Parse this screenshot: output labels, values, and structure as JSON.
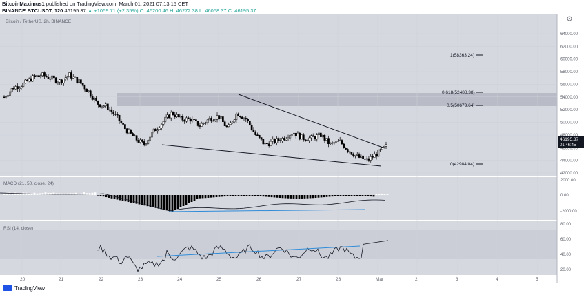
{
  "header": {
    "author": "BitcoinMaximus1",
    "published_text": "published on TradingView.com, March 01, 2021 07:13:15 CET",
    "symbol": "BINANCE:BTCUSDT, 120",
    "price": "46195.37",
    "change": "▲ +1059.71 (+2.35%)",
    "ohlc": "O: 46200.46  H: 46272.38  L: 46058.37  C: 46195.37"
  },
  "chart_title": "Bitcoin / TetherUS, 2h, BINANCE",
  "colors": {
    "background": "#d6d8e0",
    "band": "#b9bcc6",
    "candle_up": "#ffffff",
    "candle_down": "#000000",
    "trendline": "#131722",
    "divergence": "#2f8cd8"
  },
  "fib_levels": [
    {
      "label": "1(58363.24)",
      "price": 58363.24
    },
    {
      "label": "0.618(52488.38)",
      "price": 52488.38
    },
    {
      "label": "0.5(50673.64)",
      "price": 50673.64
    },
    {
      "label": "0(42984.04)",
      "price": 42984.04
    }
  ],
  "price_axis": [
    "64000.00",
    "62000.00",
    "60000.00",
    "58000.00",
    "56000.00",
    "54000.00",
    "52000.00",
    "50000.00",
    "48000.00",
    "46000.00",
    "44000.00",
    "42000.00"
  ],
  "last_price_label": "46195.37",
  "countdown_label": "01:46:45",
  "macd": {
    "label": "MACD (21, 50, close, 24)",
    "axis": [
      "2000.00",
      "0.00",
      "-2000.00"
    ]
  },
  "rsi": {
    "label": "RSI (14, close)",
    "axis": [
      "80.00",
      "60.00",
      "40.00",
      "20.00"
    ]
  },
  "time_axis": [
    "20",
    "21",
    "22",
    "23",
    "24",
    "25",
    "26",
    "27",
    "28",
    "Mar",
    "2",
    "3",
    "4",
    "5"
  ],
  "footer": {
    "brand": "TradingView"
  },
  "chart_data": {
    "type": "candlestick",
    "title": "Bitcoin / TetherUS, 2h, BINANCE",
    "y_ticks": [
      64000,
      62000,
      60000,
      58000,
      56000,
      54000,
      52000,
      50000,
      48000,
      46000,
      44000,
      42000
    ],
    "x_ticks": [
      "20",
      "21",
      "22",
      "23",
      "24",
      "25",
      "26",
      "27",
      "28",
      "Mar",
      "2",
      "3",
      "4",
      "5"
    ],
    "last_price": 46195.37,
    "fib_retracement": [
      {
        "level": "1",
        "price": 58363.24
      },
      {
        "level": "0.618",
        "price": 52488.38
      },
      {
        "level": "0.5",
        "price": 50673.64
      },
      {
        "level": "0",
        "price": 42984.04
      }
    ],
    "series_closes_approx": [
      54000,
      55500,
      56000,
      57000,
      57500,
      57000,
      56500,
      57500,
      56500,
      55000,
      53000,
      52500,
      51000,
      49000,
      47500,
      46500,
      48500,
      50000,
      51500,
      50500,
      50500,
      49500,
      50500,
      51000,
      49000,
      51500,
      50500,
      48000,
      46500,
      47000,
      47500,
      48500,
      47500,
      47500,
      48000,
      46500,
      47000,
      45500,
      44500,
      44000,
      45000,
      46195
    ]
  }
}
